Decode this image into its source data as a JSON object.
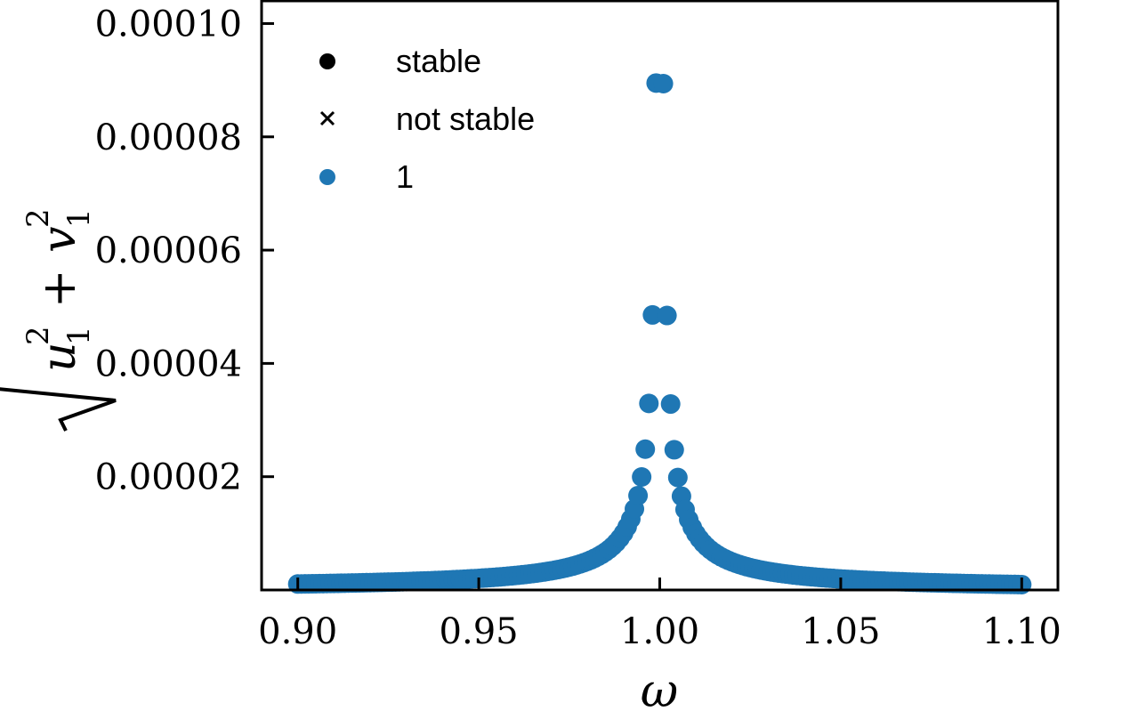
{
  "chart_data": {
    "type": "scatter",
    "xlabel": "ω",
    "ylabel_parts": {
      "u": "u",
      "v": "v",
      "sub": "1",
      "sup": "2",
      "plus": "+"
    },
    "xlim": [
      0.89,
      1.11
    ],
    "ylim": [
      0.0,
      0.000104
    ],
    "xticks": [
      0.9,
      0.95,
      1.0,
      1.05,
      1.1
    ],
    "xtick_labels": [
      "0.90",
      "0.95",
      "1.00",
      "1.05",
      "1.10"
    ],
    "yticks": [
      2e-05,
      4e-05,
      6e-05,
      8e-05,
      0.0001
    ],
    "ytick_labels": [
      "0.00002",
      "0.00004",
      "0.00006",
      "0.00008",
      "0.00010"
    ],
    "grid": false,
    "legend_position": "top-left",
    "legend": [
      {
        "label": "stable",
        "marker": "circle",
        "color": "#000000"
      },
      {
        "label": "not stable",
        "marker": "x",
        "color": "#000000"
      },
      {
        "label": "1",
        "marker": "circle",
        "color": "#1f77b4"
      }
    ],
    "series": [
      {
        "marker_color": "#1f77b4",
        "curve": {
          "omega0": 1.0,
          "amplitude_scale": 2e-07,
          "damping": 0.001
        },
        "n_points": 201,
        "x_range": [
          0.9,
          1.1
        ]
      }
    ]
  }
}
